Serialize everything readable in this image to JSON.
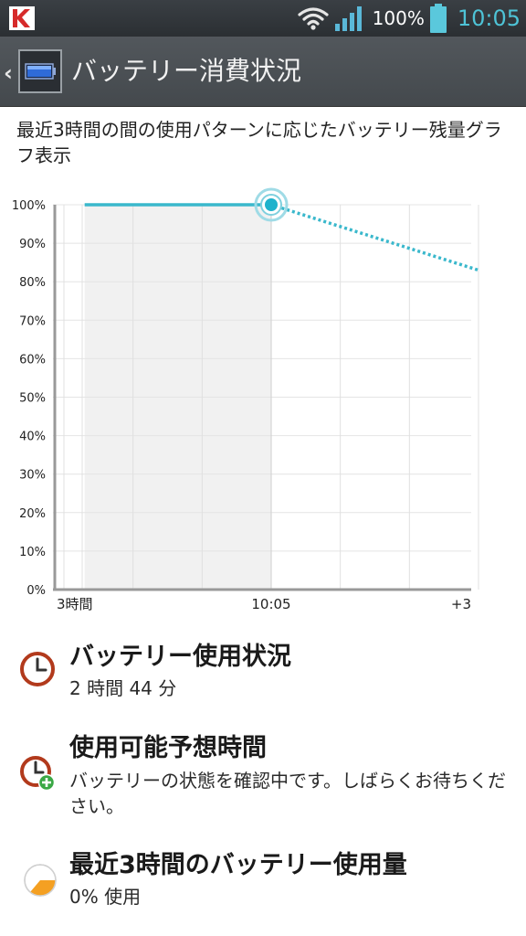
{
  "status_bar": {
    "battery_percent": "100%",
    "time": "10:05",
    "icons": [
      "kaspersky-logo-icon",
      "wifi-icon",
      "signal-icon",
      "battery-icon"
    ],
    "clock_color": "#4ec3d6"
  },
  "action_bar": {
    "title": "バッテリー消費状況",
    "icons": [
      "back-chevron-icon",
      "battery-app-icon"
    ]
  },
  "description": "最近3時間の間の使用パターンに応じたバッテリー残量グラフ表示",
  "chart_data": {
    "type": "line",
    "y_ticks": [
      "100%",
      "90%",
      "80%",
      "70%",
      "60%",
      "50%",
      "40%",
      "30%",
      "20%",
      "10%",
      "0%"
    ],
    "x_ticks": [
      "3時間",
      "10:05",
      "+3"
    ],
    "x_tick_positions_hours": [
      -3,
      0,
      3
    ],
    "xlim": [
      -3,
      3
    ],
    "ylim": [
      0,
      100
    ],
    "history_series": {
      "x": [
        -2.7,
        0
      ],
      "y": [
        100,
        100
      ],
      "style": "solid"
    },
    "forecast_series": {
      "x": [
        0,
        3
      ],
      "y": [
        100,
        83
      ],
      "style": "dotted"
    },
    "current_point": {
      "x": 0,
      "y": 100
    },
    "shaded_range": [
      -2.7,
      0
    ],
    "line_color": "#3ab8cc",
    "grid": true
  },
  "items": [
    {
      "title": "バッテリー使用状況",
      "subtitle": "2 時間 44 分",
      "icon": "clock-icon"
    },
    {
      "title": "使用可能予想時間",
      "subtitle": "バッテリーの状態を確認中です。しばらくお待ちください。",
      "icon": "clock-add-icon"
    },
    {
      "title": "最近3時間のバッテリー使用量",
      "subtitle": "0% 使用",
      "icon": "pie-chart-icon"
    }
  ]
}
